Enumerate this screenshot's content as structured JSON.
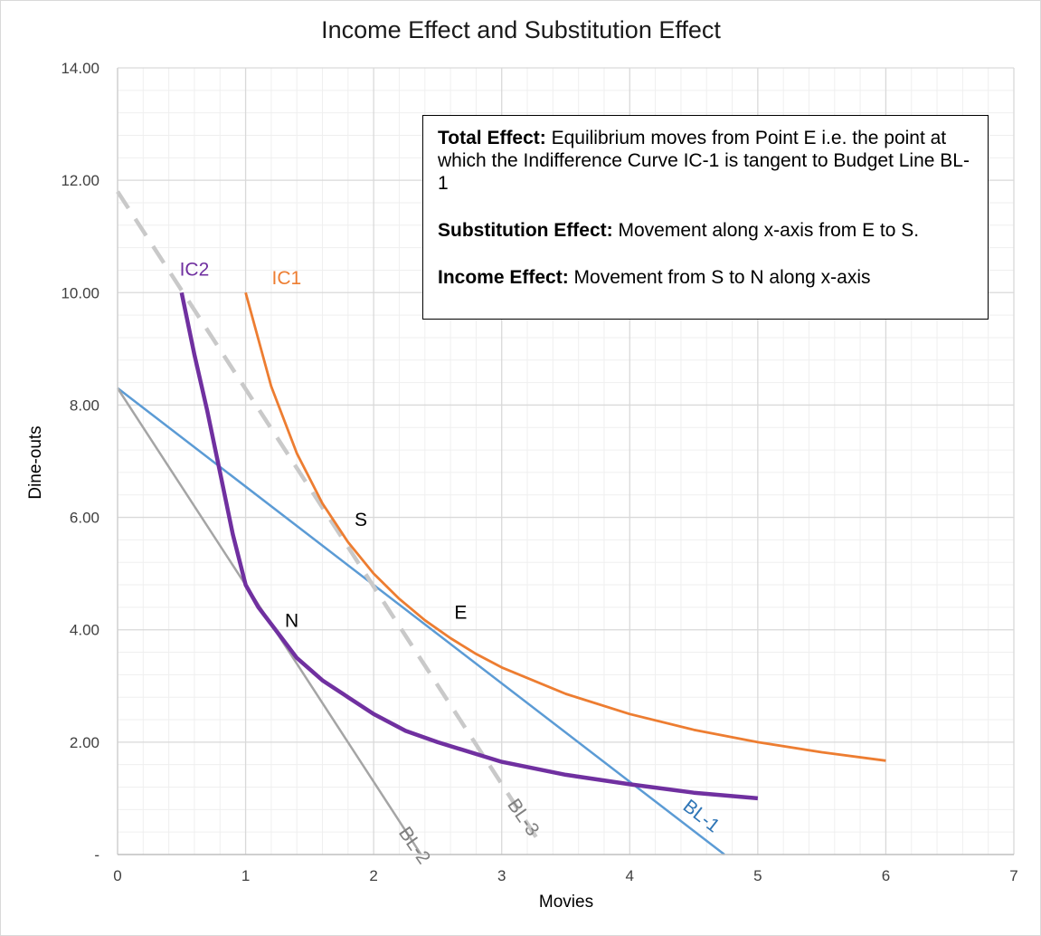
{
  "chart_data": {
    "type": "line",
    "title": "Income Effect and Substitution Effect",
    "xlabel": "Movies",
    "ylabel": "Dine-outs",
    "xlim": [
      0,
      7
    ],
    "ylim": [
      0,
      14
    ],
    "x_ticks": [
      "0",
      "1",
      "2",
      "3",
      "4",
      "5",
      "6",
      "7"
    ],
    "y_ticks": [
      "-",
      "2.00",
      "4.00",
      "6.00",
      "8.00",
      "10.00",
      "12.00",
      "14.00"
    ],
    "grid": true,
    "series": [
      {
        "name": "BL-1",
        "color": "#5b9bd5",
        "style": "solid",
        "x": [
          0,
          4.74
        ],
        "y": [
          8.3,
          0
        ]
      },
      {
        "name": "BL-2",
        "color": "#a5a5a5",
        "style": "solid",
        "x": [
          0,
          2.37
        ],
        "y": [
          8.3,
          0
        ]
      },
      {
        "name": "BL-3",
        "color": "#c9c9c9",
        "style": "dashed",
        "x": [
          0,
          3.3
        ],
        "y": [
          11.8,
          0.2
        ]
      },
      {
        "name": "IC1",
        "color": "#ed7d31",
        "style": "solid",
        "x": [
          1,
          1.2,
          1.4,
          1.6,
          1.8,
          2,
          2.2,
          2.4,
          2.6,
          2.8,
          3,
          3.5,
          4,
          4.5,
          5,
          5.5,
          6
        ],
        "y": [
          10,
          8.33,
          7.14,
          6.25,
          5.56,
          5,
          4.55,
          4.17,
          3.85,
          3.57,
          3.33,
          2.86,
          2.5,
          2.22,
          2,
          1.82,
          1.67
        ]
      },
      {
        "name": "IC2",
        "color": "#7030a0",
        "style": "solid",
        "x": [
          0.5,
          0.6,
          0.7,
          0.8,
          0.9,
          1,
          1.1,
          1.2,
          1.3,
          1.4,
          1.6,
          1.8,
          2,
          2.25,
          2.5,
          3,
          3.5,
          4,
          4.5,
          5
        ],
        "y": [
          10,
          8.9,
          7.9,
          6.8,
          5.7,
          4.8,
          4.4,
          4.1,
          3.8,
          3.5,
          3.1,
          2.8,
          2.5,
          2.2,
          2,
          1.65,
          1.42,
          1.25,
          1.1,
          1
        ]
      }
    ],
    "point_labels": [
      {
        "text": "S",
        "x": 1.9,
        "y": 5.85
      },
      {
        "text": "E",
        "x": 2.68,
        "y": 4.2
      },
      {
        "text": "N",
        "x": 1.36,
        "y": 4.05
      }
    ],
    "curve_labels": [
      {
        "text": "IC2",
        "x": 0.6,
        "y": 10.3,
        "color": "#7030a0",
        "rotate": 0
      },
      {
        "text": "IC1",
        "x": 1.32,
        "y": 10.15,
        "color": "#ed7d31",
        "rotate": 0
      },
      {
        "text": "BL-2",
        "x": 2.28,
        "y": 0.1,
        "color": "#7f7f7f",
        "rotate": 55
      },
      {
        "text": "BL-3",
        "x": 3.13,
        "y": 0.6,
        "color": "#7f7f7f",
        "rotate": 55
      },
      {
        "text": "BL-1",
        "x": 4.53,
        "y": 0.6,
        "color": "#2e75b6",
        "rotate": 38
      }
    ]
  },
  "note": {
    "total_label": "Total Effect:",
    "total_text": " Equilibrium  moves from Point E i.e. the point at which the Indifference Curve IC-1 is tangent to Budget Line BL-1",
    "substitution_label": "Substitution Effect:",
    "substitution_text": " Movement along x-axis from E to S.",
    "income_label": "Income Effect:",
    "income_text": " Movement from S to N along x-axis"
  }
}
